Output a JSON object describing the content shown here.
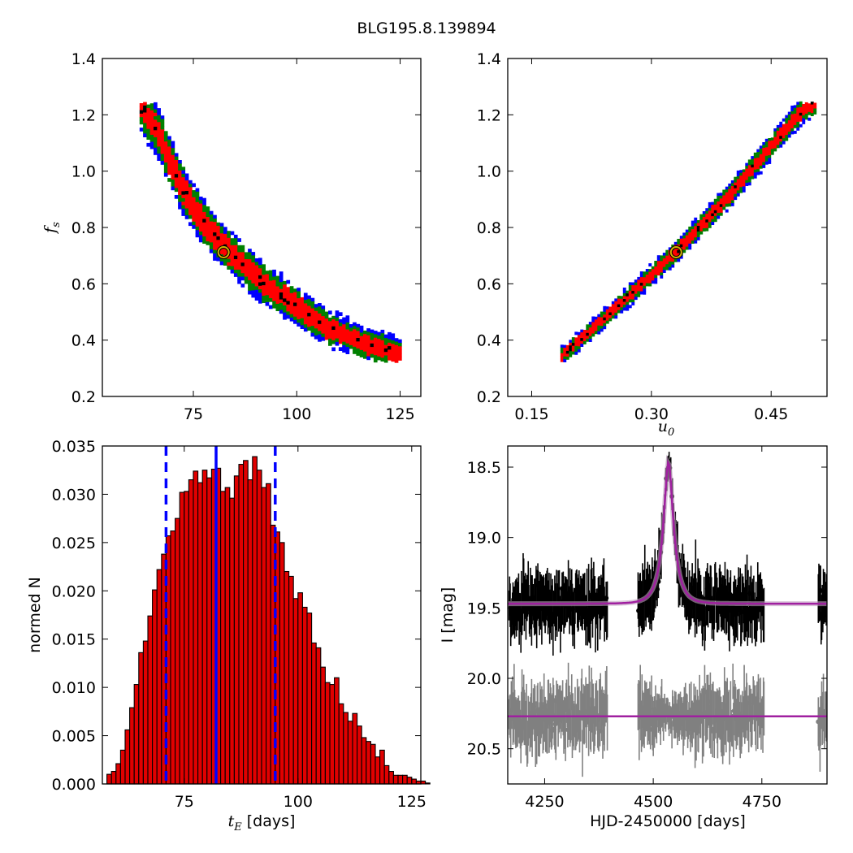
{
  "figure_title": "BLG195.8.139894",
  "chart_data": [
    {
      "type": "heatmap",
      "panel": "tE-fs",
      "xlim": [
        53,
        130
      ],
      "ylim": [
        0.2,
        1.4
      ],
      "xticks": [
        75,
        100,
        125
      ],
      "yticks": [
        0.2,
        0.4,
        0.6,
        0.8,
        1.0,
        1.2,
        1.4
      ],
      "ylabel_main": "f",
      "ylabel_sub": "s",
      "xlabel": "",
      "band_center": [
        [
          62,
          1.24
        ],
        [
          67,
          1.12
        ],
        [
          71,
          0.98
        ],
        [
          75,
          0.87
        ],
        [
          79,
          0.79
        ],
        [
          84,
          0.71
        ],
        [
          89,
          0.64
        ],
        [
          95,
          0.57
        ],
        [
          101,
          0.51
        ],
        [
          108,
          0.44
        ],
        [
          116,
          0.39
        ],
        [
          125,
          0.35
        ]
      ],
      "levels": [
        {
          "name": "3-sigma",
          "color": "#0000ff"
        },
        {
          "name": "2-sigma",
          "color": "#008000"
        },
        {
          "name": "1-sigma",
          "color": "#ff0000"
        },
        {
          "name": "best",
          "color": "#000000"
        }
      ],
      "best_fit": [
        82.3,
        0.712
      ]
    },
    {
      "type": "heatmap",
      "panel": "u0-fs",
      "xlim": [
        0.12,
        0.52
      ],
      "ylim": [
        0.2,
        1.4
      ],
      "xticks": [
        0.15,
        0.3,
        0.45
      ],
      "yticks": [
        0.2,
        0.4,
        0.6,
        0.8,
        1.0,
        1.2,
        1.4
      ],
      "xlabel_main": "u",
      "xlabel_sub": "0",
      "band_center": [
        [
          0.186,
          0.34
        ],
        [
          0.25,
          0.5
        ],
        [
          0.33,
          0.71
        ],
        [
          0.4,
          0.92
        ],
        [
          0.456,
          1.11
        ],
        [
          0.49,
          1.22
        ],
        [
          0.505,
          1.245
        ]
      ],
      "levels": [
        {
          "name": "3-sigma",
          "color": "#0000ff"
        },
        {
          "name": "2-sigma",
          "color": "#008000"
        },
        {
          "name": "1-sigma",
          "color": "#ff0000"
        },
        {
          "name": "best",
          "color": "#000000"
        }
      ],
      "best_fit": [
        0.331,
        0.712
      ]
    },
    {
      "type": "bar",
      "panel": "tE-histogram",
      "xlim": [
        57,
        127
      ],
      "ylim": [
        0,
        0.035
      ],
      "xticks": [
        75,
        100,
        125
      ],
      "yticks": [
        "0.000",
        "0.005",
        "0.010",
        "0.015",
        "0.020",
        "0.025",
        "0.030",
        "0.035"
      ],
      "ylabel": "normed N",
      "xlabel_main": "t",
      "xlabel_sub": "E",
      "xlabel_unit": " [days]",
      "bin_start": 58,
      "bin_width": 1.0,
      "values": [
        0.001,
        0.0013,
        0.0021,
        0.0035,
        0.0056,
        0.0079,
        0.0103,
        0.0136,
        0.0148,
        0.0174,
        0.0201,
        0.0222,
        0.0238,
        0.0257,
        0.0262,
        0.0275,
        0.0302,
        0.0303,
        0.0315,
        0.0324,
        0.0312,
        0.0325,
        0.0317,
        0.0326,
        0.0327,
        0.0303,
        0.0307,
        0.0296,
        0.0319,
        0.0331,
        0.0335,
        0.0315,
        0.0339,
        0.0325,
        0.0307,
        0.0311,
        0.0268,
        0.0261,
        0.025,
        0.022,
        0.0215,
        0.0192,
        0.0198,
        0.0183,
        0.0177,
        0.0146,
        0.0141,
        0.0121,
        0.0105,
        0.0103,
        0.011,
        0.0083,
        0.0074,
        0.0065,
        0.0073,
        0.006,
        0.0048,
        0.0044,
        0.0041,
        0.0028,
        0.0035,
        0.0019,
        0.0013,
        0.0009,
        0.0009,
        0.0009,
        0.0007,
        0.0005,
        0.0003,
        0.0003,
        0.0001
      ],
      "bar_color": "#e00000",
      "median": 82.0,
      "lower": 71.0,
      "upper": 95.0,
      "line_color": "#0000ff"
    },
    {
      "type": "scatter",
      "panel": "light-curve",
      "xlim": [
        4165,
        4900
      ],
      "ylim": [
        20.75,
        18.35
      ],
      "y_inverted": true,
      "xticks": [
        4250,
        4500,
        4750
      ],
      "yticks": [
        "18.5",
        "19.0",
        "19.5",
        "20.0",
        "20.5"
      ],
      "xlabel": "HJD-2450000 [days]",
      "ylabel": "I [mag]",
      "model": {
        "t0": 4535,
        "tE": 82,
        "u0": 0.33,
        "fs": 0.71,
        "baseline": 19.47,
        "color": "#a020a0"
      },
      "data_segments": [
        [
          4168,
          4395
        ],
        [
          4465,
          4755
        ],
        [
          4880,
          4900
        ]
      ],
      "data_color": "#000000",
      "residual_color": "#808080",
      "residual_offset": 20.27
    }
  ]
}
